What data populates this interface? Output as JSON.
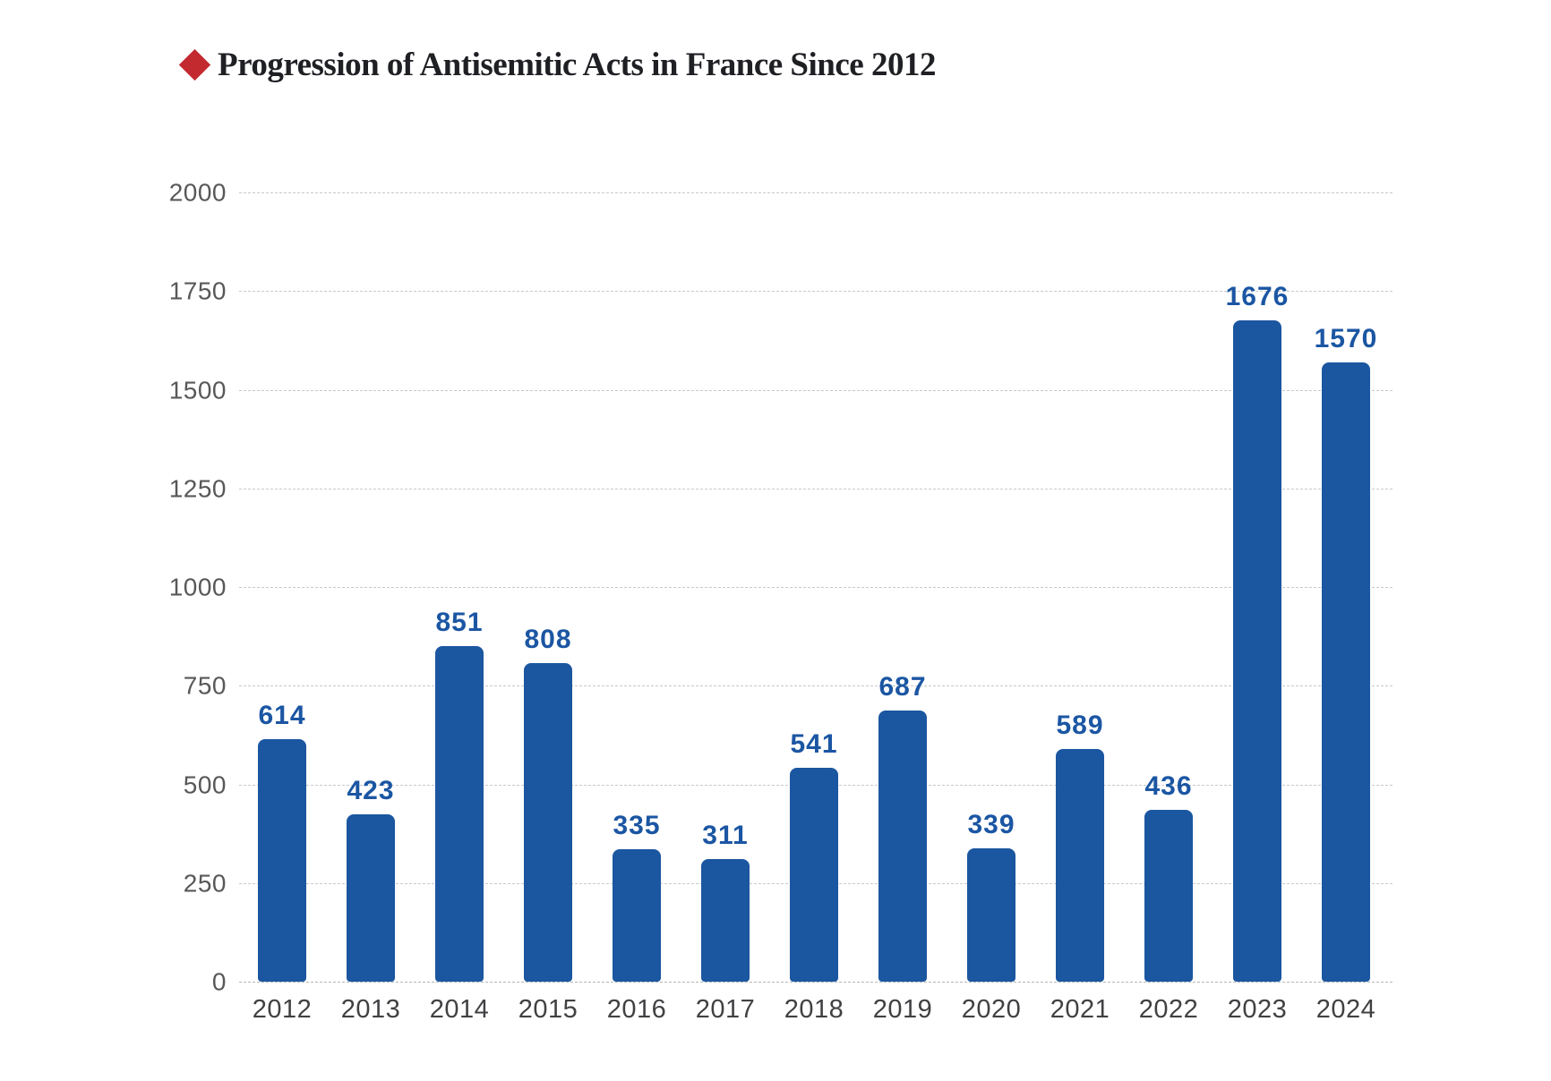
{
  "header": {
    "bullet_icon": "diamond-icon",
    "bullet_color": "#c22a30",
    "title": "Progression of Antisemitic Acts in France Since 2012",
    "title_color": "#1f2024"
  },
  "chart_data": {
    "type": "bar",
    "title": "Progression of Antisemitic Acts in France Since 2012",
    "categories": [
      "2012",
      "2013",
      "2014",
      "2015",
      "2016",
      "2017",
      "2018",
      "2019",
      "2020",
      "2021",
      "2022",
      "2023",
      "2024"
    ],
    "values": [
      614,
      423,
      851,
      808,
      335,
      311,
      541,
      687,
      339,
      589,
      436,
      1676,
      1570
    ],
    "xlabel": "",
    "ylabel": "",
    "ylim": [
      0,
      2000
    ],
    "yticks": [
      0,
      250,
      500,
      750,
      1000,
      1250,
      1500,
      1750,
      2000
    ],
    "grid": "horizontal dashed",
    "legend_position": "none",
    "bar_color": "#1b56a0",
    "value_label_color": "#1b56a3",
    "ytick_color": "#58585a",
    "xtick_color": "#414144"
  }
}
